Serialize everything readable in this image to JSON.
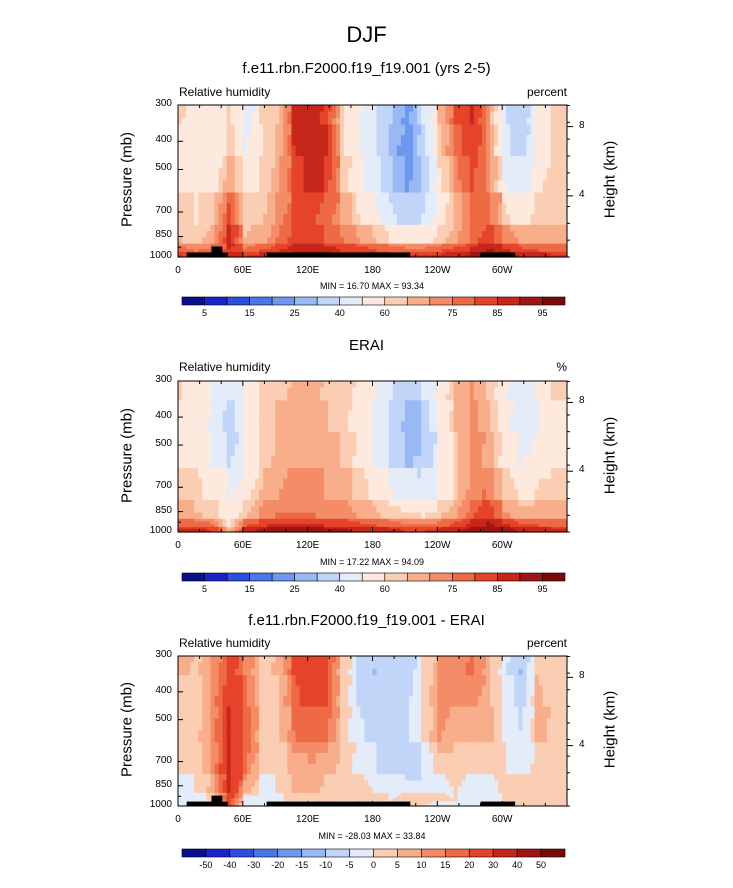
{
  "figure": {
    "title": "DJF"
  },
  "colors": {
    "palette": [
      "#08108c",
      "#1a24c8",
      "#2d4fe0",
      "#4a77ea",
      "#6e97f0",
      "#98b8f6",
      "#c0d5f8",
      "#e4ecfa",
      "#fde9dd",
      "#fbcdb3",
      "#f8ae8b",
      "#f48d67",
      "#ee6a45",
      "#e6442a",
      "#c7271a",
      "#a01512",
      "#7a0a0a"
    ]
  },
  "panels": [
    {
      "id": "model",
      "title": "f.e11.rbn.F2000.f19_f19.001 (yrs 2-5)",
      "left_label": "Relative humidity",
      "right_label": "percent",
      "min_max": "MIN =  16.70  MAX =  93.34",
      "y_label": "Pressure (mb)",
      "y2_label": "Height (km)",
      "y_ticks": [
        "300",
        "400",
        "500",
        "700",
        "850",
        "1000"
      ],
      "y2_ticks": [
        "8",
        "4"
      ],
      "x_ticks": [
        "0",
        "60E",
        "120E",
        "180",
        "120W",
        "60W"
      ],
      "colorbar_labels": [
        "5",
        "15",
        "25",
        "40",
        "60",
        "75",
        "85",
        "95"
      ]
    },
    {
      "id": "erai",
      "title": "ERAI",
      "left_label": "Relative humidity",
      "right_label": "%",
      "min_max": "MIN =  17.22  MAX =  94.09",
      "y_label": "Pressure (mb)",
      "y2_label": "Height (km)",
      "y_ticks": [
        "300",
        "400",
        "500",
        "700",
        "850",
        "1000"
      ],
      "y2_ticks": [
        "8",
        "4"
      ],
      "x_ticks": [
        "0",
        "60E",
        "120E",
        "180",
        "120W",
        "60W"
      ],
      "colorbar_labels": [
        "5",
        "15",
        "25",
        "40",
        "60",
        "75",
        "85",
        "95"
      ]
    },
    {
      "id": "diff",
      "title": "f.e11.rbn.F2000.f19_f19.001 - ERAI",
      "left_label": "Relative humidity",
      "right_label": "percent",
      "min_max": "MIN = -28.03  MAX =  33.84",
      "y_label": "Pressure (mb)",
      "y2_label": "Height (km)",
      "y_ticks": [
        "300",
        "400",
        "500",
        "700",
        "850",
        "1000"
      ],
      "y2_ticks": [
        "8",
        "4"
      ],
      "x_ticks": [
        "0",
        "60E",
        "120E",
        "180",
        "120W",
        "60W"
      ],
      "colorbar_labels": [
        "-50",
        "-40",
        "-30",
        "-20",
        "-15",
        "-10",
        "-5",
        "0",
        "5",
        "10",
        "15",
        "20",
        "30",
        "40",
        "50"
      ]
    }
  ],
  "chart_data": [
    {
      "type": "heatmap",
      "title": "f.e11.rbn.F2000.f19_f19.001 (yrs 2-5)",
      "variable": "Relative humidity",
      "units": "percent",
      "xlabel": "",
      "ylabel": "Pressure (mb)",
      "y2label": "Height (km)",
      "xlim": [
        0,
        360
      ],
      "ylim": [
        1000,
        300
      ],
      "min": 16.7,
      "max": 93.34,
      "levels": [
        5,
        10,
        15,
        20,
        25,
        30,
        40,
        50,
        60,
        65,
        70,
        75,
        80,
        85,
        90,
        95
      ],
      "grid": [
        [
          62,
          52,
          50,
          62,
          45,
          60,
          64,
          88,
          86,
          84,
          60,
          52,
          40,
          30,
          22,
          40,
          66,
          80,
          86,
          70,
          40,
          30,
          55,
          62
        ],
        [
          58,
          55,
          52,
          64,
          50,
          58,
          66,
          84,
          90,
          86,
          62,
          50,
          40,
          28,
          20,
          38,
          64,
          78,
          84,
          72,
          44,
          34,
          56,
          60
        ],
        [
          60,
          58,
          58,
          70,
          58,
          62,
          70,
          82,
          88,
          84,
          64,
          54,
          44,
          32,
          24,
          34,
          58,
          72,
          80,
          74,
          52,
          44,
          60,
          62
        ],
        [
          62,
          60,
          66,
          86,
          62,
          64,
          72,
          80,
          80,
          76,
          70,
          62,
          54,
          44,
          38,
          42,
          56,
          66,
          76,
          78,
          64,
          58,
          64,
          62
        ],
        [
          66,
          62,
          70,
          90,
          66,
          68,
          76,
          84,
          82,
          80,
          76,
          72,
          68,
          62,
          60,
          60,
          64,
          70,
          78,
          84,
          76,
          70,
          70,
          68
        ],
        [
          80,
          76,
          80,
          84,
          78,
          82,
          86,
          90,
          90,
          88,
          86,
          84,
          82,
          80,
          80,
          80,
          82,
          84,
          88,
          92,
          88,
          84,
          82,
          80
        ],
        [
          86,
          84,
          86,
          88,
          86,
          88,
          90,
          92,
          92,
          92,
          90,
          90,
          88,
          88,
          86,
          86,
          86,
          88,
          92,
          93,
          92,
          90,
          88,
          86
        ]
      ]
    },
    {
      "type": "heatmap",
      "title": "ERAI",
      "variable": "Relative humidity",
      "units": "%",
      "xlabel": "",
      "ylabel": "Pressure (mb)",
      "y2label": "Height (km)",
      "xlim": [
        0,
        360
      ],
      "ylim": [
        1000,
        300
      ],
      "min": 17.22,
      "max": 94.09,
      "levels": [
        5,
        10,
        15,
        20,
        25,
        30,
        40,
        50,
        60,
        65,
        70,
        75,
        80,
        85,
        90,
        95
      ],
      "grid": [
        [
          60,
          58,
          48,
          40,
          52,
          60,
          64,
          66,
          66,
          64,
          62,
          58,
          50,
          40,
          32,
          40,
          56,
          66,
          70,
          64,
          52,
          40,
          50,
          60
        ],
        [
          58,
          56,
          46,
          32,
          50,
          60,
          66,
          68,
          68,
          66,
          62,
          56,
          48,
          36,
          24,
          30,
          52,
          66,
          72,
          66,
          54,
          44,
          48,
          58
        ],
        [
          60,
          58,
          50,
          38,
          52,
          62,
          68,
          70,
          70,
          68,
          64,
          58,
          50,
          40,
          30,
          32,
          50,
          64,
          72,
          68,
          56,
          50,
          54,
          60
        ],
        [
          64,
          62,
          58,
          50,
          58,
          66,
          70,
          72,
          72,
          70,
          68,
          64,
          58,
          52,
          48,
          46,
          54,
          64,
          74,
          76,
          64,
          60,
          62,
          64
        ],
        [
          68,
          66,
          64,
          56,
          66,
          72,
          76,
          76,
          76,
          74,
          72,
          70,
          68,
          64,
          62,
          62,
          66,
          70,
          80,
          86,
          72,
          68,
          68,
          68
        ],
        [
          80,
          80,
          78,
          60,
          82,
          86,
          88,
          88,
          88,
          86,
          86,
          84,
          82,
          80,
          78,
          78,
          80,
          84,
          90,
          92,
          88,
          84,
          82,
          80
        ],
        [
          88,
          88,
          86,
          68,
          90,
          92,
          94,
          94,
          94,
          92,
          92,
          90,
          90,
          88,
          86,
          86,
          88,
          90,
          94,
          94,
          92,
          90,
          88,
          88
        ]
      ]
    },
    {
      "type": "heatmap",
      "title": "f.e11.rbn.F2000.f19_f19.001 - ERAI",
      "variable": "Relative humidity",
      "units": "percent",
      "xlabel": "",
      "ylabel": "Pressure (mb)",
      "y2label": "Height (km)",
      "xlim": [
        0,
        360
      ],
      "ylim": [
        1000,
        300
      ],
      "min": -28.03,
      "max": 33.84,
      "levels": [
        -50,
        -40,
        -30,
        -20,
        -15,
        -10,
        -5,
        0,
        5,
        10,
        15,
        20,
        30,
        40,
        50
      ],
      "grid": [
        [
          6,
          4,
          10,
          24,
          14,
          4,
          6,
          22,
          24,
          20,
          4,
          -6,
          -10,
          -6,
          -8,
          0,
          10,
          14,
          16,
          6,
          -4,
          -10,
          4,
          4
        ],
        [
          4,
          2,
          12,
          30,
          18,
          2,
          4,
          18,
          22,
          20,
          2,
          -6,
          -8,
          -6,
          -6,
          2,
          12,
          12,
          12,
          6,
          -2,
          -8,
          6,
          4
        ],
        [
          2,
          4,
          12,
          30,
          20,
          4,
          4,
          14,
          18,
          16,
          2,
          -4,
          -6,
          -8,
          -6,
          2,
          10,
          8,
          8,
          8,
          0,
          -4,
          6,
          4
        ],
        [
          0,
          2,
          10,
          34,
          16,
          0,
          2,
          8,
          8,
          6,
          2,
          -2,
          -4,
          -8,
          -10,
          -4,
          2,
          2,
          2,
          2,
          0,
          -2,
          2,
          0
        ],
        [
          -2,
          0,
          8,
          30,
          6,
          -4,
          0,
          6,
          6,
          4,
          2,
          2,
          0,
          -2,
          -2,
          -2,
          -2,
          0,
          -2,
          -4,
          2,
          2,
          2,
          0
        ],
        [
          0,
          -4,
          2,
          24,
          -4,
          -4,
          -2,
          2,
          2,
          2,
          0,
          0,
          0,
          0,
          2,
          2,
          2,
          0,
          -2,
          0,
          0,
          0,
          0,
          0
        ],
        [
          -2,
          -4,
          0,
          20,
          -4,
          -4,
          -4,
          -2,
          -2,
          0,
          -2,
          0,
          -2,
          0,
          0,
          0,
          -2,
          -2,
          -2,
          -1,
          0,
          0,
          0,
          0
        ]
      ]
    }
  ],
  "topography_blocks": [
    {
      "lon_start": 8,
      "lon_end": 46,
      "top_pressure": 965
    },
    {
      "lon_start": 31,
      "lon_end": 41,
      "top_pressure": 920
    },
    {
      "lon_start": 82,
      "lon_end": 215,
      "top_pressure": 965
    },
    {
      "lon_start": 280,
      "lon_end": 312,
      "top_pressure": 965
    }
  ]
}
